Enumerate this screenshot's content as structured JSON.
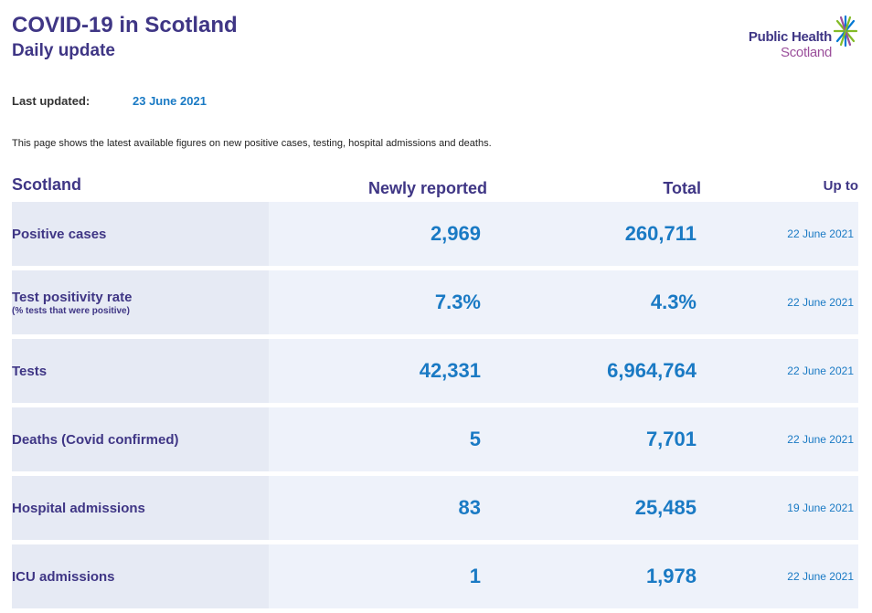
{
  "header": {
    "title": "COVID-19 in Scotland",
    "subtitle": "Daily update"
  },
  "logo": {
    "line1": "Public Health",
    "line2": "Scotland",
    "icon": "phs-star-icon",
    "colors": {
      "primary": "#3f3685",
      "secondary": "#9b4f9b",
      "star_green": "#83bb26",
      "star_blue": "#0078d4"
    }
  },
  "last_updated": {
    "label": "Last updated:",
    "value": "23 June 2021"
  },
  "intro": "This page shows the latest available figures on new positive cases, testing, hospital admissions and deaths.",
  "table": {
    "headers": {
      "region": "Scotland",
      "newly_reported": "Newly reported",
      "total": "Total",
      "up_to": "Up to"
    },
    "rows": [
      {
        "label": "Positive cases",
        "sublabel": "",
        "new": "2,969",
        "total": "260,711",
        "up_to": "22 June 2021"
      },
      {
        "label": "Test positivity rate",
        "sublabel": "(% tests that were positive)",
        "new": "7.3%",
        "total": "4.3%",
        "up_to": "22 June 2021"
      },
      {
        "label": "Tests",
        "sublabel": "",
        "new": "42,331",
        "total": "6,964,764",
        "up_to": "22 June 2021"
      },
      {
        "label": "Deaths (Covid confirmed)",
        "sublabel": "",
        "new": "5",
        "total": "7,701",
        "up_to": "22 June 2021"
      },
      {
        "label": "Hospital admissions",
        "sublabel": "",
        "new": "83",
        "total": "25,485",
        "up_to": "19 June 2021"
      },
      {
        "label": "ICU admissions",
        "sublabel": "",
        "new": "1",
        "total": "1,978",
        "up_to": "22 June 2021"
      }
    ]
  },
  "colors": {
    "heading": "#3f3685",
    "value": "#1a7ac4",
    "row_bg": "#eef2fa",
    "label_bg": "#e6eaf4"
  }
}
